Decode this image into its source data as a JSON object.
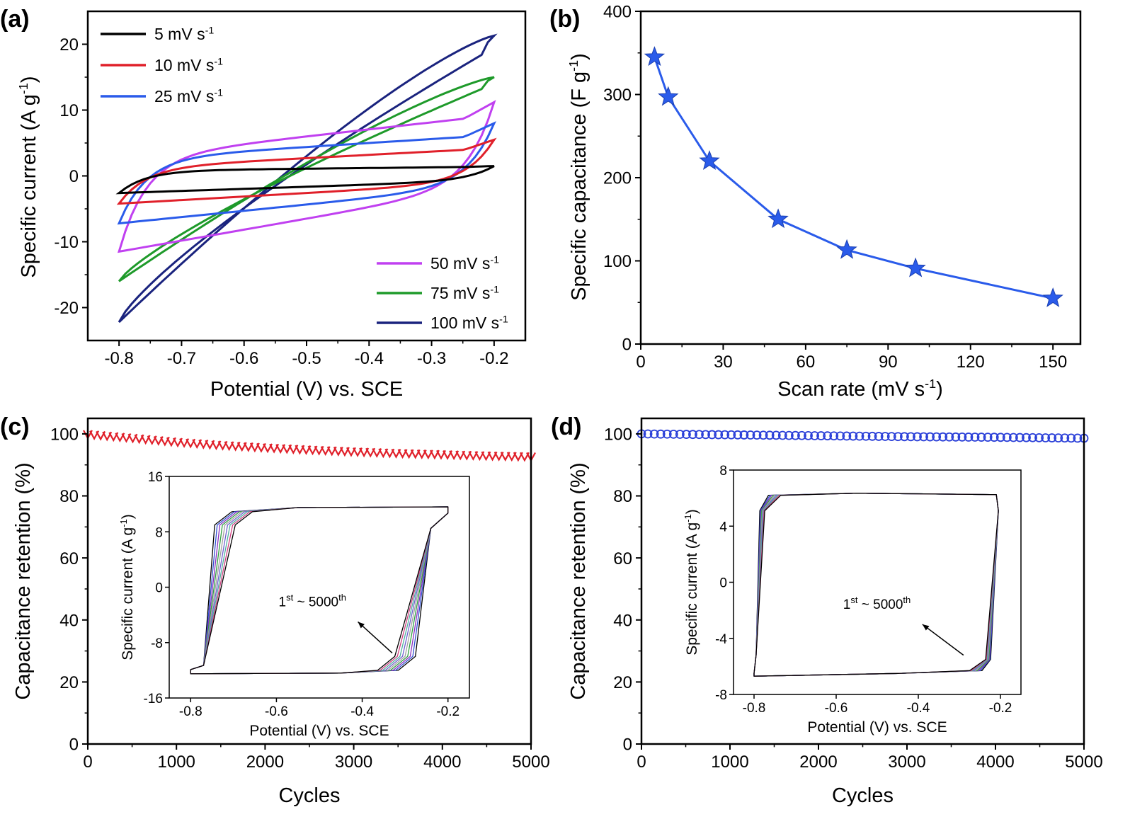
{
  "figure": {
    "panels": [
      "(a)",
      "(b)",
      "(c)",
      "(d)"
    ]
  },
  "chart_data": [
    {
      "id": "a",
      "panel_label": "(a)",
      "type": "line",
      "subtype": "cyclic-voltammetry",
      "xlabel": "Potential (V) vs. SCE",
      "ylabel": "Specific current (A g-1)",
      "ylabel_parts": {
        "main": "Specific current (A g",
        "sup": "-1",
        "end": ")"
      },
      "xlim": [
        -0.85,
        -0.15
      ],
      "ylim": [
        -25,
        25
      ],
      "xticks": [
        -0.8,
        -0.7,
        -0.6,
        -0.5,
        -0.4,
        -0.3,
        -0.2
      ],
      "xtick_labels": [
        "-0.8",
        "-0.7",
        "-0.6",
        "-0.5",
        "-0.4",
        "-0.3",
        "-0.2"
      ],
      "yticks": [
        -20,
        -10,
        0,
        10,
        20
      ],
      "ytick_labels": [
        "-20",
        "-10",
        "0",
        "10",
        "20"
      ],
      "series": [
        {
          "name": "5 mV s-1",
          "label": "5 mV s",
          "sup": "-1",
          "color": "#000000",
          "legend_pos": "top-left",
          "loop": {
            "kind": "rect",
            "upper_start": 0.8,
            "upper_end": 1.4,
            "lower_start": -2.6,
            "lower_end": -0.7,
            "tip": 1.5
          }
        },
        {
          "name": "10 mV s-1",
          "label": "10 mV s",
          "sup": "-1",
          "color": "#e0202a",
          "legend_pos": "top-left",
          "loop": {
            "kind": "rect",
            "upper_start": 1.2,
            "upper_end": 4.2,
            "lower_start": -4.2,
            "lower_end": -1.0,
            "tip": 5.5
          }
        },
        {
          "name": "25 mV s-1",
          "label": "25 mV s",
          "sup": "-1",
          "color": "#2a5bea",
          "legend_pos": "top-left",
          "loop": {
            "kind": "rect",
            "upper_start": 2.6,
            "upper_end": 6.2,
            "lower_start": -7.2,
            "lower_end": -1.5,
            "tip": 8.0
          }
        },
        {
          "name": "50 mV s-1",
          "label": "50 mV s",
          "sup": "-1",
          "color": "#c040f0",
          "legend_pos": "bottom-right",
          "loop": {
            "kind": "rect",
            "upper_start": 2.8,
            "upper_end": 9.2,
            "lower_start": -11.5,
            "lower_end": -1.5,
            "tip": 11.2
          }
        },
        {
          "name": "75 mV s-1",
          "label": "75 mV s",
          "sup": "-1",
          "color": "#1e9a2a",
          "legend_pos": "bottom-right",
          "loop": {
            "kind": "diag",
            "upper_start": 1.0,
            "upper_end": 14.0,
            "lower_start": -16.0,
            "lower_end": -1.5,
            "tip": 15.0
          }
        },
        {
          "name": "100 mV s-1",
          "label": "100 mV s",
          "sup": "-1",
          "color": "#1a237e",
          "legend_pos": "bottom-right",
          "loop": {
            "kind": "diag",
            "upper_start": -1.0,
            "upper_end": 19.5,
            "lower_start": -22.2,
            "lower_end": 0.5,
            "tip": 21.3
          }
        }
      ]
    },
    {
      "id": "b",
      "panel_label": "(b)",
      "type": "line",
      "xlabel": "Scan rate (mV s-1)",
      "xlabel_parts": {
        "main": "Scan rate (mV s",
        "sup": "-1",
        "end": ")"
      },
      "ylabel": "Specific capacitance (F g-1)",
      "ylabel_parts": {
        "main": "Specific capacitance (F g",
        "sup": "-1",
        "end": ")"
      },
      "xlim": [
        0,
        160
      ],
      "ylim": [
        0,
        400
      ],
      "xticks": [
        0,
        30,
        60,
        90,
        120,
        150
      ],
      "xtick_labels": [
        "0",
        "30",
        "60",
        "90",
        "120",
        "150"
      ],
      "yticks": [
        0,
        100,
        200,
        300,
        400
      ],
      "ytick_labels": [
        "0",
        "100",
        "200",
        "300",
        "400"
      ],
      "marker": "star",
      "color": "#2a5bea",
      "series": [
        {
          "name": "Specific capacitance",
          "x": [
            5,
            10,
            25,
            50,
            75,
            100,
            150
          ],
          "y": [
            345,
            297,
            220,
            150,
            113,
            91,
            55
          ]
        }
      ]
    },
    {
      "id": "c",
      "panel_label": "(c)",
      "type": "scatter",
      "xlabel": "Cycles",
      "ylabel": "Capacitance retention (%)",
      "xlim": [
        0,
        5000
      ],
      "ylim": [
        0,
        105
      ],
      "xticks": [
        0,
        1000,
        2000,
        3000,
        4000,
        5000
      ],
      "xtick_labels": [
        "0",
        "1000",
        "2000",
        "3000",
        "4000",
        "5000"
      ],
      "yticks": [
        0,
        20,
        40,
        60,
        80,
        100
      ],
      "ytick_labels": [
        "0",
        "20",
        "40",
        "60",
        "80",
        "100"
      ],
      "marker": "triangle",
      "color": "#e0202a",
      "series": [
        {
          "name": "Retention",
          "x": [
            0,
            500,
            1000,
            1500,
            2000,
            2500,
            3000,
            3500,
            4000,
            4500,
            5000
          ],
          "y": [
            100,
            98.8,
            97.5,
            96.5,
            95.7,
            95.0,
            94.4,
            93.9,
            93.5,
            93.1,
            92.8
          ]
        }
      ],
      "inset": {
        "xlabel": "Potential (V) vs. SCE",
        "ylabel": "Specific current (A g-1)",
        "ylabel_parts": {
          "main": "Specific current (A g",
          "sup": "-1",
          "end": ")"
        },
        "xlim": [
          -0.85,
          -0.15
        ],
        "ylim": [
          -16,
          16
        ],
        "xticks": [
          -0.8,
          -0.6,
          -0.4,
          -0.2
        ],
        "xtick_labels": [
          "-0.8",
          "-0.6",
          "-0.4",
          "-0.2"
        ],
        "yticks": [
          -16,
          -8,
          0,
          8,
          16
        ],
        "ytick_labels": [
          "-16",
          "-8",
          "0",
          "8",
          "16"
        ],
        "annotation": {
          "pre": "1",
          "sup1": "st",
          "mid": " ~ 5000",
          "sup2": "th",
          "arrow_from": [
            -0.33,
            -9.5
          ],
          "arrow_to": [
            -0.41,
            -5.0
          ]
        },
        "loops": {
          "kind": "slanted",
          "top": 11.5,
          "bottom": -12.5,
          "left": -0.8,
          "right": -0.2,
          "rise_v": 0.08,
          "count": 9,
          "colors": [
            "#000000",
            "#3050d0",
            "#8a30c0",
            "#30a040",
            "#a0a0a0",
            "#7060d0",
            "#50b0a0",
            "#d04080",
            "#000000"
          ]
        }
      }
    },
    {
      "id": "d",
      "panel_label": "(d)",
      "type": "scatter",
      "xlabel": "Cycles",
      "ylabel": "Capacitance retention (%)",
      "xlim": [
        0,
        5000
      ],
      "ylim": [
        0,
        105
      ],
      "xticks": [
        0,
        1000,
        2000,
        3000,
        4000,
        5000
      ],
      "xtick_labels": [
        "0",
        "1000",
        "2000",
        "3000",
        "4000",
        "5000"
      ],
      "yticks": [
        0,
        20,
        40,
        60,
        80,
        100
      ],
      "ytick_labels": [
        "0",
        "20",
        "40",
        "60",
        "80",
        "100"
      ],
      "marker": "circle",
      "color": "#2a3fd8",
      "series": [
        {
          "name": "Retention",
          "x": [
            0,
            1000,
            2000,
            3000,
            4000,
            5000
          ],
          "y": [
            100,
            99.7,
            99.4,
            99.1,
            98.9,
            98.6
          ]
        }
      ],
      "inset": {
        "xlabel": "Potential (V) vs. SCE",
        "ylabel": "Specific current (A g-1)",
        "ylabel_parts": {
          "main": "Specific current (A g",
          "sup": "-1",
          "end": ")"
        },
        "xlim": [
          -0.85,
          -0.15
        ],
        "ylim": [
          -8,
          8
        ],
        "xticks": [
          -0.8,
          -0.6,
          -0.4,
          -0.2
        ],
        "xtick_labels": [
          "-0.8",
          "-0.6",
          "-0.4",
          "-0.2"
        ],
        "yticks": [
          -8,
          -4,
          0,
          4,
          8
        ],
        "ytick_labels": [
          "-8",
          "-4",
          "0",
          "4",
          "8"
        ],
        "annotation": {
          "pre": "1",
          "sup1": "st",
          "mid": " ~ 5000",
          "sup2": "th",
          "arrow_from": [
            -0.29,
            -5.2
          ],
          "arrow_to": [
            -0.39,
            -3.0
          ]
        },
        "loops": {
          "kind": "box",
          "top": 6.3,
          "bottom": -6.7,
          "left": -0.8,
          "right": -0.21,
          "rise_v": 0.05,
          "count": 9,
          "colors": [
            "#000000",
            "#3050d0",
            "#8a30c0",
            "#30a040",
            "#a0a0a0",
            "#7060d0",
            "#50b0a0",
            "#d04080",
            "#000000"
          ]
        }
      }
    }
  ]
}
